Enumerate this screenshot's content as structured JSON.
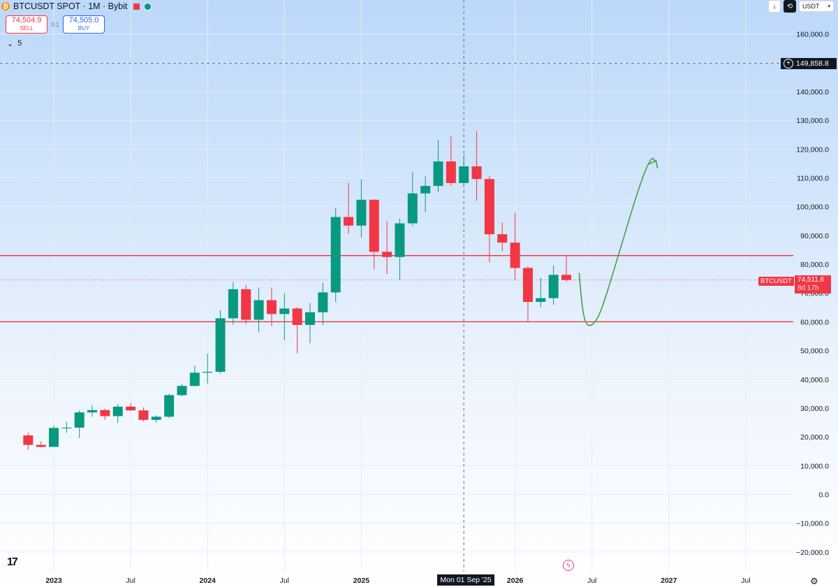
{
  "header": {
    "title": "BTCUSDT SPOT · 1M · Bybit",
    "coin_icon": "bitcoin-icon",
    "sell_price": "74,504.9",
    "sell_label": "SELL",
    "spread": "0.1",
    "buy_price": "74,505.0",
    "buy_label": "BUY",
    "indicators_count": "5",
    "collapse_icon": "chevron-down-icon"
  },
  "toolbar": {
    "download_icon": "arrow-down-icon",
    "replay_icon": "replay-icon",
    "currency": "USDT",
    "currency_icon": "chevron-down-icon"
  },
  "crosshair": {
    "price_label": "149,858.8",
    "date_label": "Mon 01 Sep '25",
    "icon": "plus-circle-icon"
  },
  "last_price": {
    "symbol": "BTCUSDT",
    "price": "74,511.6",
    "countdown": "8d 17h"
  },
  "footer": {
    "logo": "TV",
    "settings_icon": "gear-icon",
    "flash_icon": "lightning-icon"
  },
  "colors": {
    "up": "#089981",
    "down": "#f23645",
    "level_line": "#e53935",
    "arrow": "#43a047",
    "background_top": "#bcd8fa"
  },
  "chart_data": {
    "type": "candlestick",
    "title": "BTCUSDT SPOT · 1M · Bybit",
    "ylim": [
      -25000,
      170000
    ],
    "y_ticks": [
      "160,000.0",
      "150,000.0",
      "140,000.0",
      "130,000.0",
      "120,000.0",
      "110,000.0",
      "100,000.0",
      "90,000.0",
      "80,000.0",
      "70,000.0",
      "60,000.0",
      "50,000.0",
      "40,000.0",
      "30,000.0",
      "20,000.0",
      "10,000.0",
      "0.0",
      "−10,000.0",
      "−20,000.0"
    ],
    "y_tick_values": [
      160000,
      150000,
      140000,
      130000,
      120000,
      110000,
      100000,
      90000,
      80000,
      70000,
      60000,
      50000,
      40000,
      30000,
      20000,
      10000,
      0,
      -10000,
      -20000
    ],
    "x_labels": [
      {
        "text": "2023",
        "month": "2023-01",
        "bold": true
      },
      {
        "text": "Jul",
        "month": "2023-07",
        "bold": false
      },
      {
        "text": "2024",
        "month": "2024-01",
        "bold": true
      },
      {
        "text": "Jul",
        "month": "2024-07",
        "bold": false
      },
      {
        "text": "2025",
        "month": "2025-01",
        "bold": true
      },
      {
        "text": "2026",
        "month": "2026-01",
        "bold": true
      },
      {
        "text": "Jul",
        "month": "2026-07",
        "bold": false
      },
      {
        "text": "2027",
        "month": "2027-01",
        "bold": true
      },
      {
        "text": "Jul",
        "month": "2027-07",
        "bold": false
      }
    ],
    "candles": [
      {
        "month": "2022-11",
        "o": 20500,
        "h": 21500,
        "l": 15500,
        "c": 17200
      },
      {
        "month": "2022-12",
        "o": 17200,
        "h": 18400,
        "l": 16300,
        "c": 16500
      },
      {
        "month": "2023-01",
        "o": 16500,
        "h": 23900,
        "l": 16500,
        "c": 23100
      },
      {
        "month": "2023-02",
        "o": 23100,
        "h": 25200,
        "l": 21400,
        "c": 23200
      },
      {
        "month": "2023-03",
        "o": 23200,
        "h": 29200,
        "l": 19600,
        "c": 28500
      },
      {
        "month": "2023-04",
        "o": 28500,
        "h": 31000,
        "l": 27000,
        "c": 29300
      },
      {
        "month": "2023-05",
        "o": 29300,
        "h": 29800,
        "l": 25800,
        "c": 27200
      },
      {
        "month": "2023-06",
        "o": 27200,
        "h": 31400,
        "l": 24800,
        "c": 30500
      },
      {
        "month": "2023-07",
        "o": 30500,
        "h": 31800,
        "l": 29000,
        "c": 29200
      },
      {
        "month": "2023-08",
        "o": 29200,
        "h": 30200,
        "l": 25300,
        "c": 25900
      },
      {
        "month": "2023-09",
        "o": 25900,
        "h": 27500,
        "l": 24900,
        "c": 27000
      },
      {
        "month": "2023-10",
        "o": 27000,
        "h": 35000,
        "l": 26500,
        "c": 34500
      },
      {
        "month": "2023-11",
        "o": 34500,
        "h": 38400,
        "l": 34100,
        "c": 37700
      },
      {
        "month": "2023-12",
        "o": 37700,
        "h": 44700,
        "l": 37600,
        "c": 42300
      },
      {
        "month": "2024-01",
        "o": 42300,
        "h": 48900,
        "l": 38500,
        "c": 42600
      },
      {
        "month": "2024-02",
        "o": 42600,
        "h": 64000,
        "l": 41900,
        "c": 61200
      },
      {
        "month": "2024-03",
        "o": 61200,
        "h": 73800,
        "l": 59000,
        "c": 71300
      },
      {
        "month": "2024-04",
        "o": 71300,
        "h": 72800,
        "l": 59200,
        "c": 60700
      },
      {
        "month": "2024-05",
        "o": 60700,
        "h": 71900,
        "l": 56500,
        "c": 67500
      },
      {
        "month": "2024-06",
        "o": 67500,
        "h": 71900,
        "l": 58500,
        "c": 62700
      },
      {
        "month": "2024-07",
        "o": 62700,
        "h": 70000,
        "l": 53500,
        "c": 64600
      },
      {
        "month": "2024-08",
        "o": 64600,
        "h": 65100,
        "l": 49000,
        "c": 58900
      },
      {
        "month": "2024-09",
        "o": 58900,
        "h": 66500,
        "l": 52500,
        "c": 63300
      },
      {
        "month": "2024-10",
        "o": 63300,
        "h": 73600,
        "l": 58900,
        "c": 70200
      },
      {
        "month": "2024-11",
        "o": 70200,
        "h": 99600,
        "l": 66800,
        "c": 96400
      },
      {
        "month": "2024-12",
        "o": 96400,
        "h": 108300,
        "l": 90500,
        "c": 93400
      },
      {
        "month": "2025-01",
        "o": 93400,
        "h": 109500,
        "l": 89200,
        "c": 102400
      },
      {
        "month": "2025-02",
        "o": 102400,
        "h": 102500,
        "l": 78200,
        "c": 84300
      },
      {
        "month": "2025-03",
        "o": 84300,
        "h": 95000,
        "l": 76600,
        "c": 82500
      },
      {
        "month": "2025-04",
        "o": 82500,
        "h": 95800,
        "l": 74400,
        "c": 94200
      },
      {
        "month": "2025-05",
        "o": 94200,
        "h": 111900,
        "l": 93300,
        "c": 104600
      },
      {
        "month": "2025-06",
        "o": 104600,
        "h": 110500,
        "l": 98200,
        "c": 107200
      },
      {
        "month": "2025-07",
        "o": 107200,
        "h": 123200,
        "l": 105100,
        "c": 115700
      },
      {
        "month": "2025-08",
        "o": 115700,
        "h": 124400,
        "l": 107300,
        "c": 108200
      },
      {
        "month": "2025-09",
        "o": 108200,
        "h": 117900,
        "l": 107300,
        "c": 114000
      },
      {
        "month": "2025-10",
        "o": 114000,
        "h": 126200,
        "l": 102000,
        "c": 109600
      },
      {
        "month": "2025-11",
        "o": 109600,
        "h": 110600,
        "l": 80600,
        "c": 90400
      },
      {
        "month": "2025-12",
        "o": 90400,
        "h": 94500,
        "l": 84500,
        "c": 87500
      },
      {
        "month": "2026-01",
        "o": 87500,
        "h": 97900,
        "l": 74500,
        "c": 78700
      },
      {
        "month": "2026-02",
        "o": 78700,
        "h": 79300,
        "l": 60000,
        "c": 66900
      },
      {
        "month": "2026-03",
        "o": 66900,
        "h": 75300,
        "l": 65000,
        "c": 68200
      },
      {
        "month": "2026-04",
        "o": 68200,
        "h": 79500,
        "l": 65900,
        "c": 76300
      },
      {
        "month": "2026-05",
        "o": 76300,
        "h": 82800,
        "l": 74000,
        "c": 74511.6
      }
    ],
    "horizontal_lines": [
      83000,
      60000
    ],
    "crosshair_price": 149858.8,
    "crosshair_month": "2025-09",
    "last_price": 74511.6,
    "projection_arrow": [
      {
        "month": "2026-06",
        "price": 77000
      },
      {
        "month": "2026-07",
        "price": 59000
      },
      {
        "month": "2026-08",
        "price": 70000
      },
      {
        "month": "2026-10",
        "price": 97000
      },
      {
        "month": "2026-12",
        "price": 116000
      }
    ]
  }
}
